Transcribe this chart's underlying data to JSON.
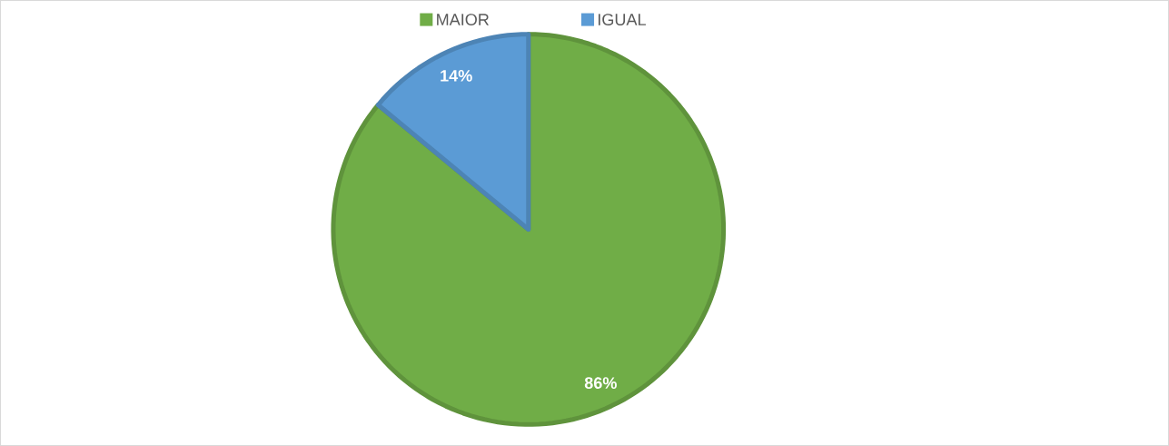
{
  "chart_data": {
    "type": "pie",
    "categories": [
      "MAIOR",
      "IGUAL"
    ],
    "values": [
      86,
      14
    ],
    "colors": [
      "#70ad47",
      "#5b9bd5"
    ],
    "value_labels": [
      "86%",
      "14%"
    ],
    "legend": "top"
  }
}
